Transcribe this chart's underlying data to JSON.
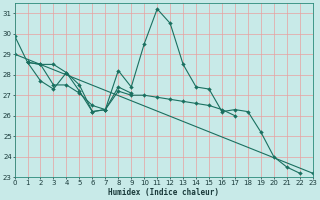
{
  "xlabel": "Humidex (Indice chaleur)",
  "bg_color": "#c8eae8",
  "grid_color": "#e8a0a0",
  "line_color": "#1a7060",
  "xlim": [
    0,
    23
  ],
  "ylim": [
    23,
    31.5
  ],
  "yticks": [
    23,
    24,
    25,
    26,
    27,
    28,
    29,
    30,
    31
  ],
  "xticks": [
    0,
    1,
    2,
    3,
    4,
    5,
    6,
    7,
    8,
    9,
    10,
    11,
    12,
    13,
    14,
    15,
    16,
    17,
    18,
    19,
    20,
    21,
    22,
    23
  ],
  "lines": [
    {
      "x": [
        0,
        1,
        2,
        3,
        4,
        5,
        6,
        7,
        8,
        9,
        10,
        11,
        12,
        13,
        14,
        15,
        16,
        17,
        18,
        19,
        20,
        21,
        22
      ],
      "y": [
        29.9,
        28.6,
        28.5,
        28.5,
        28.1,
        27.5,
        26.2,
        26.3,
        28.2,
        27.4,
        29.5,
        31.2,
        30.5,
        28.5,
        27.4,
        27.3,
        26.2,
        26.3,
        26.2,
        25.2,
        24.0,
        23.5,
        23.2
      ]
    },
    {
      "x": [
        1,
        2,
        3,
        4,
        5,
        6,
        7,
        8,
        9
      ],
      "y": [
        28.6,
        27.7,
        27.3,
        28.1,
        27.2,
        26.2,
        26.3,
        27.4,
        27.1
      ]
    },
    {
      "x": [
        1,
        2,
        3,
        4,
        5,
        6,
        7,
        8,
        9,
        10,
        11,
        12,
        13,
        14,
        15,
        16,
        17
      ],
      "y": [
        28.6,
        28.5,
        27.5,
        27.5,
        27.1,
        26.5,
        26.3,
        27.2,
        27.0,
        27.0,
        26.9,
        26.8,
        26.7,
        26.6,
        26.5,
        26.3,
        26.0
      ]
    },
    {
      "x": [
        0,
        23
      ],
      "y": [
        29.0,
        23.2
      ]
    }
  ]
}
